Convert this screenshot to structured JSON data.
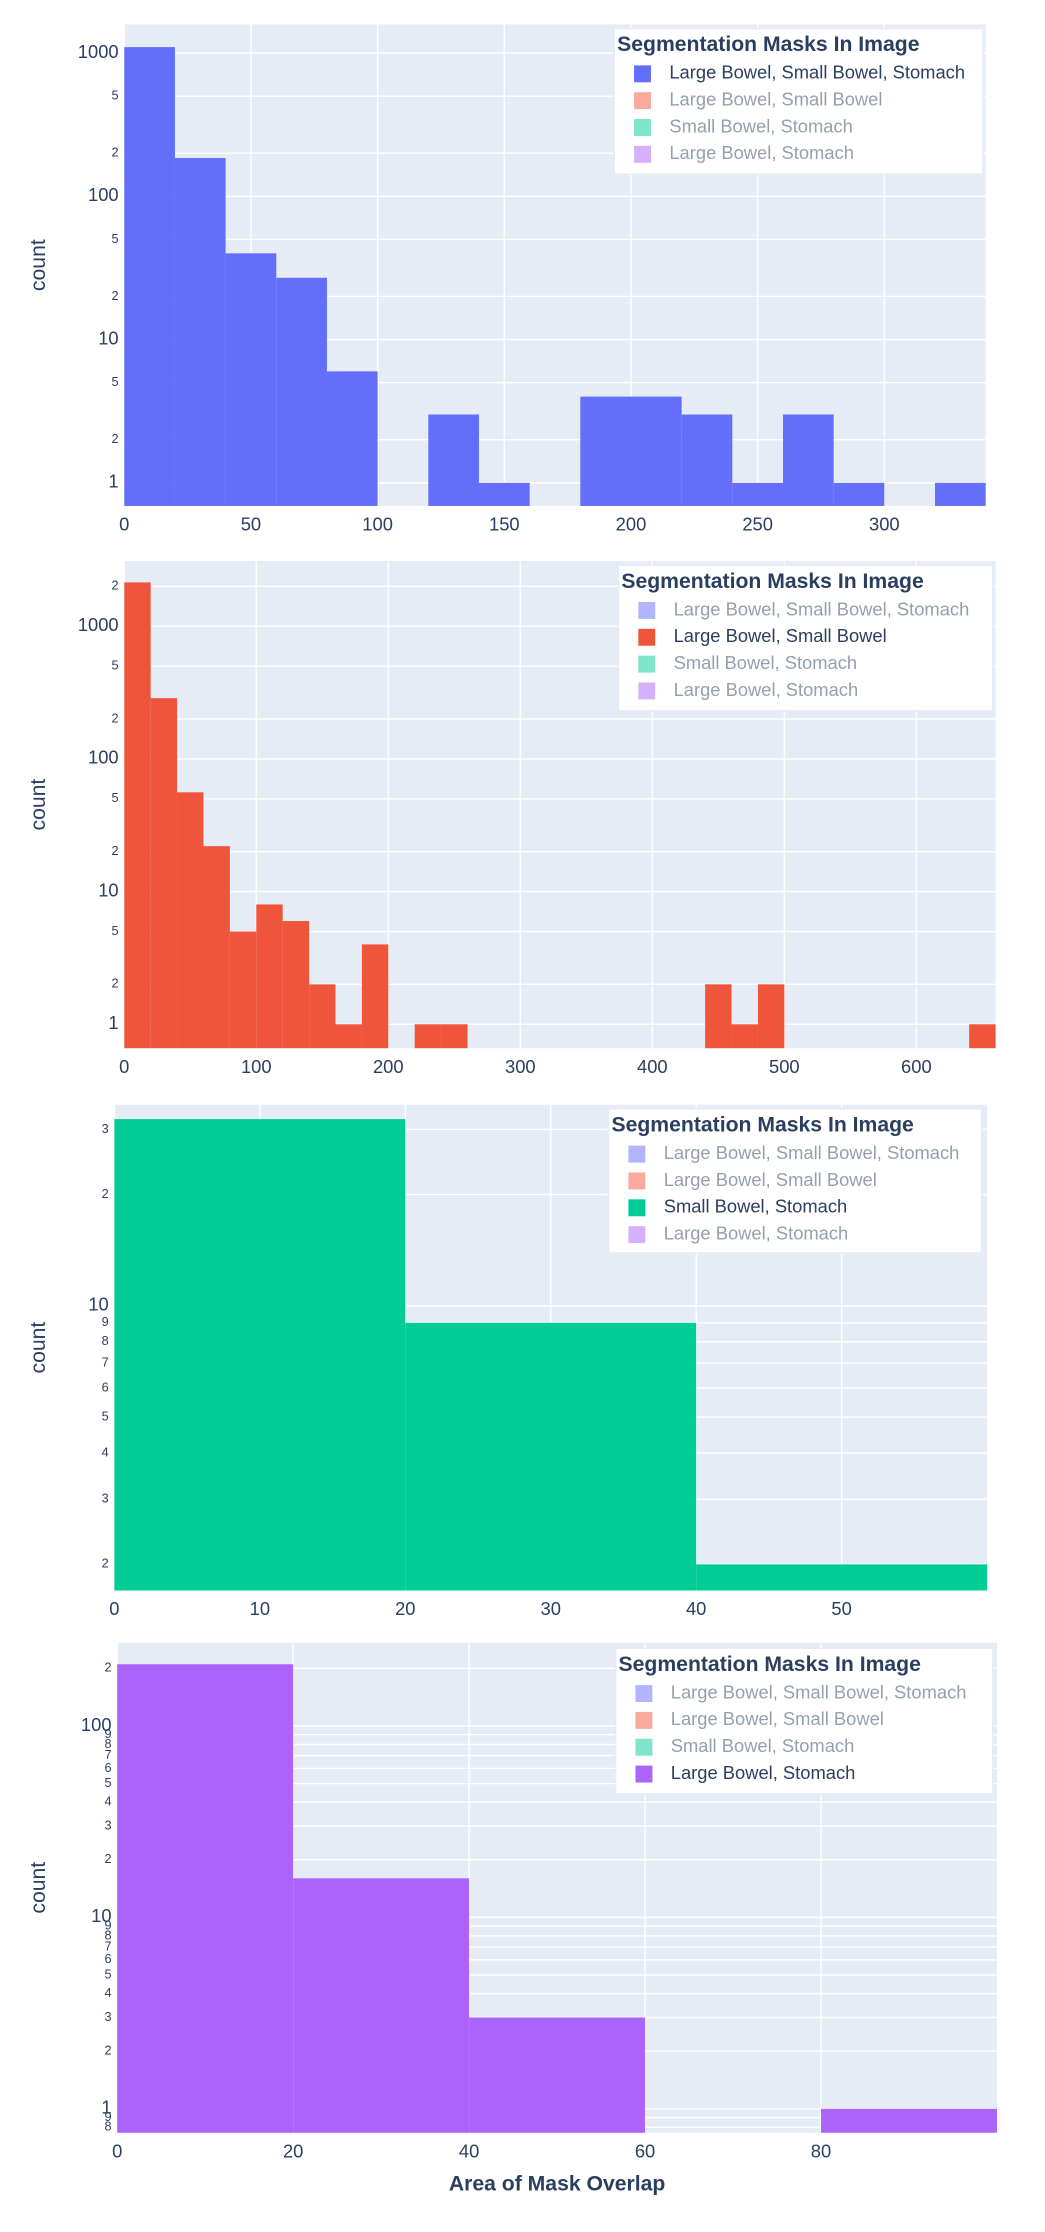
{
  "chart_data": [
    {
      "type": "histogram",
      "ylabel": "count",
      "log_y": true,
      "grid": true,
      "bins": [
        0,
        20,
        40,
        60,
        80,
        100,
        120,
        140,
        160,
        180,
        200,
        220,
        240,
        260,
        280,
        300,
        320,
        340
      ],
      "series": [
        {
          "name": "Large Bowel, Small Bowel, Stomach",
          "color": "#636efa",
          "values": [
            1100,
            185,
            40,
            27,
            6,
            0,
            3,
            1,
            0,
            4,
            4,
            3,
            1,
            3,
            1,
            0,
            1
          ]
        }
      ],
      "xlim": [
        0,
        340
      ],
      "xticks": [
        0,
        50,
        100,
        150,
        200,
        250,
        300
      ],
      "ylim": [
        0.69,
        1585
      ],
      "yticks": [
        1,
        2,
        5,
        10,
        {
          "value": 20,
          "label": "2"
        },
        {
          "value": 50,
          "label": "5"
        },
        100,
        {
          "value": 200,
          "label": "2"
        },
        {
          "value": 500,
          "label": "5"
        },
        1000
      ],
      "legend": {
        "title": "Segmentation Masks In Image",
        "position": "upper right",
        "items": [
          {
            "name": "Large Bowel, Small Bowel, Stomach",
            "color": "#636efa",
            "visible": true
          },
          {
            "name": "Large Bowel, Small Bowel",
            "color": "#ef553b",
            "visible": false
          },
          {
            "name": "Small Bowel, Stomach",
            "color": "#00cc96",
            "visible": false
          },
          {
            "name": "Large Bowel, Stomach",
            "color": "#ab63fa",
            "visible": false
          }
        ]
      }
    },
    {
      "type": "histogram",
      "ylabel": "count",
      "log_y": true,
      "grid": true,
      "bins": [
        0,
        20,
        40,
        60,
        80,
        100,
        120,
        140,
        160,
        180,
        200,
        220,
        240,
        260,
        280,
        300,
        320,
        340,
        360,
        380,
        400,
        420,
        440,
        460,
        480,
        500,
        520,
        540,
        560,
        580,
        600,
        620,
        640,
        660
      ],
      "series": [
        {
          "name": "Large Bowel, Small Bowel",
          "color": "#ef553b",
          "values": [
            2140,
            287,
            56,
            22,
            5,
            8,
            6,
            2,
            1,
            4,
            0,
            1,
            1,
            0,
            0,
            0,
            0,
            0,
            0,
            0,
            0,
            0,
            2,
            1,
            2,
            0,
            0,
            0,
            0,
            0,
            0,
            0,
            1
          ]
        }
      ],
      "xlim": [
        0,
        660
      ],
      "xticks": [
        0,
        100,
        200,
        300,
        400,
        500,
        600
      ],
      "ylim": [
        0.66,
        3100
      ],
      "yticks": [
        1,
        2,
        5,
        10,
        {
          "value": 20,
          "label": "2"
        },
        {
          "value": 50,
          "label": "5"
        },
        100,
        {
          "value": 200,
          "label": "2"
        },
        {
          "value": 500,
          "label": "5"
        },
        1000,
        {
          "value": 2000,
          "label": "2"
        }
      ],
      "legend": {
        "title": "Segmentation Masks In Image",
        "position": "upper right",
        "items": [
          {
            "name": "Large Bowel, Small Bowel, Stomach",
            "color": "#636efa",
            "visible": false
          },
          {
            "name": "Large Bowel, Small Bowel",
            "color": "#ef553b",
            "visible": true
          },
          {
            "name": "Small Bowel, Stomach",
            "color": "#00cc96",
            "visible": false
          },
          {
            "name": "Large Bowel, Stomach",
            "color": "#ab63fa",
            "visible": false
          }
        ]
      }
    },
    {
      "type": "histogram",
      "ylabel": "count",
      "log_y": true,
      "grid": true,
      "bins": [
        0,
        20,
        40,
        60
      ],
      "series": [
        {
          "name": "Small Bowel, Stomach",
          "color": "#00cc96",
          "values": [
            32,
            9,
            2
          ]
        }
      ],
      "xlim": [
        0,
        60
      ],
      "xticks": [
        0,
        10,
        20,
        30,
        40,
        50
      ],
      "ylim": [
        1.7,
        35
      ],
      "yticks": [
        2,
        3,
        4,
        5,
        6,
        7,
        8,
        9,
        10,
        {
          "value": 20,
          "label": "2"
        },
        {
          "value": 30,
          "label": "3"
        }
      ],
      "legend": {
        "title": "Segmentation Masks In Image",
        "position": "upper right",
        "items": [
          {
            "name": "Large Bowel, Small Bowel, Stomach",
            "color": "#636efa",
            "visible": false
          },
          {
            "name": "Large Bowel, Small Bowel",
            "color": "#ef553b",
            "visible": false
          },
          {
            "name": "Small Bowel, Stomach",
            "color": "#00cc96",
            "visible": true
          },
          {
            "name": "Large Bowel, Stomach",
            "color": "#ab63fa",
            "visible": false
          }
        ]
      }
    },
    {
      "type": "histogram",
      "ylabel": "count",
      "xlabel": "Area of Mask Overlap",
      "log_y": true,
      "grid": true,
      "bins": [
        0,
        20,
        40,
        60,
        80,
        100
      ],
      "series": [
        {
          "name": "Large Bowel, Stomach",
          "color": "#ab63fa",
          "values": [
            210,
            16,
            3,
            0,
            1
          ]
        }
      ],
      "xlim": [
        0,
        100
      ],
      "xticks": [
        0,
        20,
        40,
        60,
        80
      ],
      "ylim": [
        0.75,
        272
      ],
      "yticks": [
        {
          "value": 0.8,
          "label": "8"
        },
        {
          "value": 0.9,
          "label": "9"
        },
        1,
        2,
        3,
        4,
        5,
        6,
        7,
        8,
        9,
        10,
        {
          "value": 20,
          "label": "2"
        },
        {
          "value": 30,
          "label": "3"
        },
        {
          "value": 40,
          "label": "4"
        },
        {
          "value": 50,
          "label": "5"
        },
        {
          "value": 60,
          "label": "6"
        },
        {
          "value": 70,
          "label": "7"
        },
        {
          "value": 80,
          "label": "8"
        },
        {
          "value": 90,
          "label": "9"
        },
        100,
        {
          "value": 200,
          "label": "2"
        }
      ],
      "legend": {
        "title": "Segmentation Masks In Image",
        "position": "upper right",
        "items": [
          {
            "name": "Large Bowel, Small Bowel, Stomach",
            "color": "#636efa",
            "visible": false
          },
          {
            "name": "Large Bowel, Small Bowel",
            "color": "#ef553b",
            "visible": false
          },
          {
            "name": "Small Bowel, Stomach",
            "color": "#00cc96",
            "visible": false
          },
          {
            "name": "Large Bowel, Stomach",
            "color": "#ab63fa",
            "visible": true
          }
        ]
      }
    }
  ]
}
